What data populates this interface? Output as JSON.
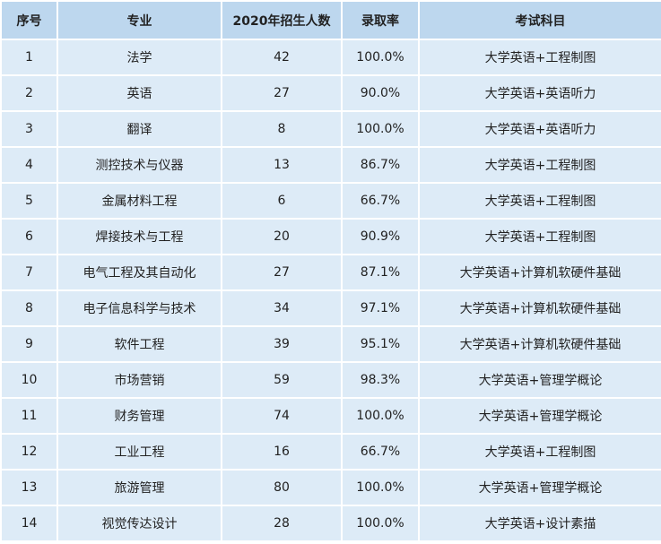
{
  "table": {
    "header": [
      "序号",
      "专业",
      "2020年招生人数",
      "录取率",
      "考试科目"
    ],
    "rows": [
      [
        "1",
        "法学",
        "42",
        "100.0%",
        "大学英语+工程制图"
      ],
      [
        "2",
        "英语",
        "27",
        "90.0%",
        "大学英语+英语听力"
      ],
      [
        "3",
        "翻译",
        "8",
        "100.0%",
        "大学英语+英语听力"
      ],
      [
        "4",
        "测控技术与仪器",
        "13",
        "86.7%",
        "大学英语+工程制图"
      ],
      [
        "5",
        "金属材料工程",
        "6",
        "66.7%",
        "大学英语+工程制图"
      ],
      [
        "6",
        "焊接技术与工程",
        "20",
        "90.9%",
        "大学英语+工程制图"
      ],
      [
        "7",
        "电气工程及其自动化",
        "27",
        "87.1%",
        "大学英语+计算机软硬件基础"
      ],
      [
        "8",
        "电子信息科学与技术",
        "34",
        "97.1%",
        "大学英语+计算机软硬件基础"
      ],
      [
        "9",
        "软件工程",
        "39",
        "95.1%",
        "大学英语+计算机软硬件基础"
      ],
      [
        "10",
        "市场营销",
        "59",
        "98.3%",
        "大学英语+管理学概论"
      ],
      [
        "11",
        "财务管理",
        "74",
        "100.0%",
        "大学英语+管理学概论"
      ],
      [
        "12",
        "工业工程",
        "16",
        "66.7%",
        "大学英语+工程制图"
      ],
      [
        "13",
        "旅游管理",
        "80",
        "100.0%",
        "大学英语+管理学概论"
      ],
      [
        "14",
        "视觉传达设计",
        "28",
        "100.0%",
        "大学英语+设计素描"
      ]
    ]
  }
}
